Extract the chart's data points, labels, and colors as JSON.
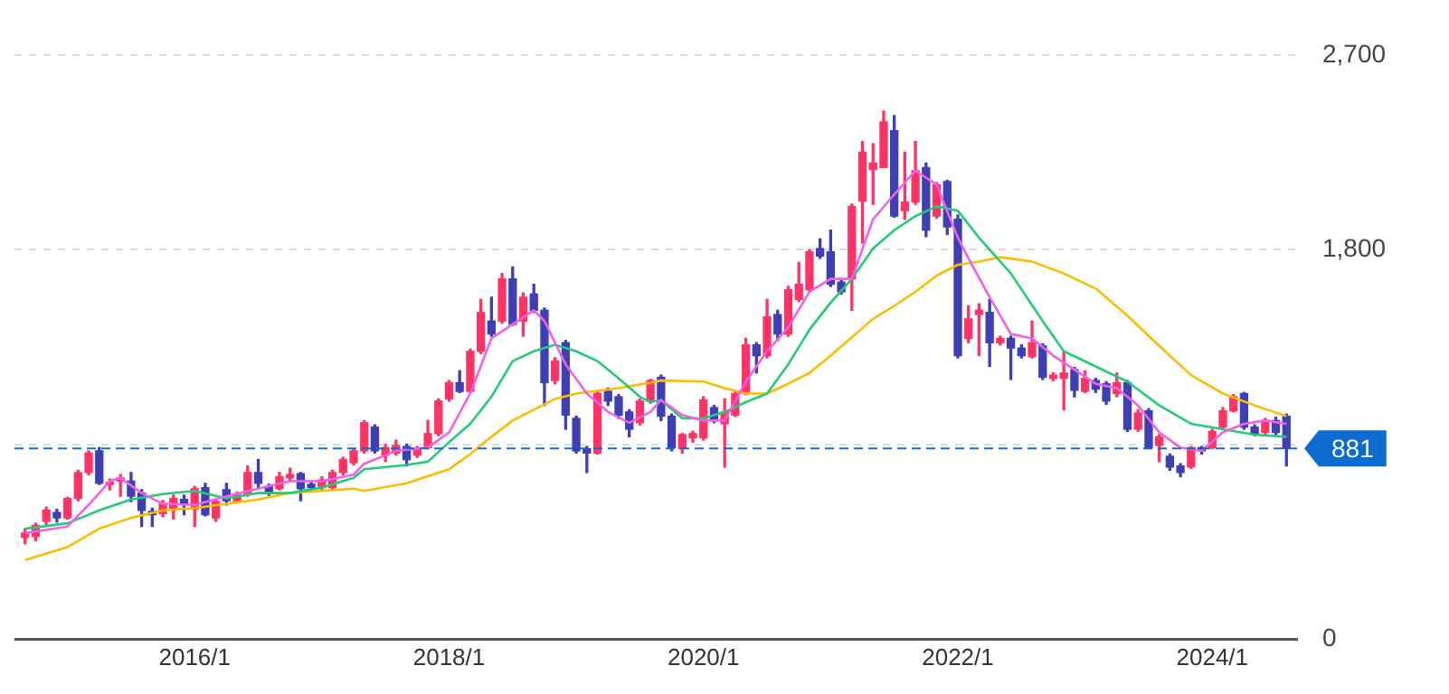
{
  "chart_data": {
    "type": "candlestick",
    "x": [
      "2014-09",
      "2014-10",
      "2014-11",
      "2014-12",
      "2015-01",
      "2015-02",
      "2015-03",
      "2015-04",
      "2015-05",
      "2015-06",
      "2015-07",
      "2015-08",
      "2015-09",
      "2015-10",
      "2015-11",
      "2015-12",
      "2016-01",
      "2016-02",
      "2016-03",
      "2016-04",
      "2016-05",
      "2016-06",
      "2016-07",
      "2016-08",
      "2016-09",
      "2016-10",
      "2016-11",
      "2016-12",
      "2017-01",
      "2017-02",
      "2017-03",
      "2017-04",
      "2017-05",
      "2017-06",
      "2017-07",
      "2017-08",
      "2017-09",
      "2017-10",
      "2017-11",
      "2017-12",
      "2018-01",
      "2018-02",
      "2018-03",
      "2018-04",
      "2018-05",
      "2018-06",
      "2018-07",
      "2018-08",
      "2018-09",
      "2018-10",
      "2018-11",
      "2018-12",
      "2019-01",
      "2019-02",
      "2019-03",
      "2019-04",
      "2019-05",
      "2019-06",
      "2019-07",
      "2019-08",
      "2019-09",
      "2019-10",
      "2019-11",
      "2019-12",
      "2020-01",
      "2020-02",
      "2020-03",
      "2020-04",
      "2020-05",
      "2020-06",
      "2020-07",
      "2020-08",
      "2020-09",
      "2020-10",
      "2020-11",
      "2020-12",
      "2021-01",
      "2021-02",
      "2021-03",
      "2021-04",
      "2021-05",
      "2021-06",
      "2021-07",
      "2021-08",
      "2021-09",
      "2021-10",
      "2021-11",
      "2021-12",
      "2022-01",
      "2022-02",
      "2022-03",
      "2022-04",
      "2022-05",
      "2022-06",
      "2022-07",
      "2022-08",
      "2022-09",
      "2022-10",
      "2022-11",
      "2022-12",
      "2023-01",
      "2023-02",
      "2023-03",
      "2023-04",
      "2023-05",
      "2023-06",
      "2023-07",
      "2023-08",
      "2023-09",
      "2023-10",
      "2023-11",
      "2023-12",
      "2024-01",
      "2024-02",
      "2024-03",
      "2024-04",
      "2024-05",
      "2024-06",
      "2024-07",
      "2024-08"
    ],
    "ohlc": [
      [
        470,
        510,
        440,
        490
      ],
      [
        475,
        535,
        455,
        525
      ],
      [
        545,
        610,
        530,
        595
      ],
      [
        585,
        600,
        540,
        560
      ],
      [
        560,
        655,
        555,
        650
      ],
      [
        650,
        780,
        640,
        770
      ],
      [
        770,
        870,
        760,
        860
      ],
      [
        870,
        885,
        715,
        720
      ],
      [
        715,
        740,
        690,
        725
      ],
      [
        730,
        760,
        660,
        745
      ],
      [
        730,
        770,
        635,
        660
      ],
      [
        675,
        690,
        520,
        595
      ],
      [
        590,
        605,
        520,
        575
      ],
      [
        580,
        640,
        565,
        625
      ],
      [
        600,
        665,
        555,
        650
      ],
      [
        645,
        665,
        575,
        625
      ],
      [
        600,
        705,
        520,
        695
      ],
      [
        700,
        720,
        570,
        575
      ],
      [
        560,
        645,
        545,
        635
      ],
      [
        690,
        720,
        620,
        640
      ],
      [
        640,
        680,
        630,
        665
      ],
      [
        670,
        800,
        660,
        770
      ],
      [
        770,
        830,
        700,
        720
      ],
      [
        705,
        715,
        665,
        680
      ],
      [
        695,
        770,
        690,
        750
      ],
      [
        745,
        790,
        735,
        760
      ],
      [
        765,
        770,
        640,
        695
      ],
      [
        715,
        725,
        690,
        700
      ],
      [
        700,
        750,
        690,
        735
      ],
      [
        700,
        780,
        690,
        770
      ],
      [
        770,
        840,
        760,
        830
      ],
      [
        815,
        880,
        805,
        870
      ],
      [
        870,
        1010,
        860,
        1000
      ],
      [
        980,
        990,
        860,
        870
      ],
      [
        850,
        900,
        820,
        885
      ],
      [
        860,
        920,
        850,
        895
      ],
      [
        890,
        900,
        800,
        830
      ],
      [
        850,
        890,
        840,
        880
      ],
      [
        885,
        1010,
        880,
        950
      ],
      [
        950,
        1110,
        940,
        1100
      ],
      [
        1110,
        1195,
        1100,
        1185
      ],
      [
        1185,
        1240,
        1140,
        1145
      ],
      [
        1145,
        1340,
        1140,
        1330
      ],
      [
        1330,
        1570,
        1320,
        1510
      ],
      [
        1470,
        1580,
        1400,
        1410
      ],
      [
        1470,
        1690,
        1460,
        1665
      ],
      [
        1665,
        1720,
        1450,
        1455
      ],
      [
        1470,
        1600,
        1400,
        1580
      ],
      [
        1595,
        1640,
        1510,
        1520
      ],
      [
        1520,
        1530,
        1080,
        1185
      ],
      [
        1195,
        1300,
        1180,
        1285
      ],
      [
        1370,
        1380,
        970,
        1035
      ],
      [
        1020,
        1030,
        860,
        870
      ],
      [
        880,
        890,
        770,
        860
      ],
      [
        860,
        1145,
        855,
        1135
      ],
      [
        1145,
        1160,
        1080,
        1100
      ],
      [
        1120,
        1130,
        1020,
        1035
      ],
      [
        1050,
        1060,
        935,
        970
      ],
      [
        1000,
        1110,
        990,
        1100
      ],
      [
        1100,
        1200,
        1090,
        1195
      ],
      [
        1210,
        1220,
        1010,
        1030
      ],
      [
        1030,
        1040,
        870,
        885
      ],
      [
        880,
        950,
        860,
        945
      ],
      [
        930,
        960,
        910,
        950
      ],
      [
        930,
        1120,
        920,
        1105
      ],
      [
        1070,
        1080,
        1000,
        1010
      ],
      [
        995,
        1110,
        795,
        1050
      ],
      [
        1035,
        1145,
        1030,
        1135
      ],
      [
        1135,
        1390,
        1130,
        1360
      ],
      [
        1360,
        1370,
        1230,
        1310
      ],
      [
        1310,
        1570,
        1300,
        1490
      ],
      [
        1500,
        1520,
        1380,
        1410
      ],
      [
        1410,
        1630,
        1400,
        1615
      ],
      [
        1570,
        1740,
        1560,
        1640
      ],
      [
        1615,
        1800,
        1610,
        1790
      ],
      [
        1805,
        1850,
        1760,
        1770
      ],
      [
        1790,
        1890,
        1630,
        1640
      ],
      [
        1650,
        1660,
        1595,
        1605
      ],
      [
        1665,
        2010,
        1520,
        2000
      ],
      [
        2025,
        2300,
        1830,
        2250
      ],
      [
        2170,
        2290,
        2010,
        2200
      ],
      [
        2180,
        2440,
        2180,
        2390
      ],
      [
        2350,
        2420,
        1950,
        1955
      ],
      [
        1980,
        2250,
        1940,
        2020
      ],
      [
        2020,
        2300,
        2010,
        2165
      ],
      [
        2180,
        2200,
        1860,
        1890
      ],
      [
        1955,
        2110,
        1945,
        2100
      ],
      [
        2115,
        2120,
        1870,
        1905
      ],
      [
        1940,
        1960,
        1300,
        1310
      ],
      [
        1390,
        1540,
        1370,
        1480
      ],
      [
        1500,
        1550,
        1310,
        1520
      ],
      [
        1510,
        1570,
        1260,
        1370
      ],
      [
        1370,
        1400,
        1360,
        1390
      ],
      [
        1390,
        1400,
        1200,
        1345
      ],
      [
        1345,
        1360,
        1300,
        1310
      ],
      [
        1305,
        1470,
        1300,
        1370
      ],
      [
        1355,
        1365,
        1200,
        1210
      ],
      [
        1205,
        1230,
        1195,
        1220
      ],
      [
        1205,
        1330,
        1060,
        1230
      ],
      [
        1245,
        1255,
        1120,
        1150
      ],
      [
        1145,
        1240,
        1140,
        1205
      ],
      [
        1195,
        1205,
        1140,
        1155
      ],
      [
        1180,
        1190,
        1085,
        1100
      ],
      [
        1135,
        1230,
        1120,
        1185
      ],
      [
        1185,
        1195,
        960,
        970
      ],
      [
        970,
        1060,
        960,
        1045
      ],
      [
        1055,
        1065,
        880,
        885
      ],
      [
        895,
        945,
        820,
        935
      ],
      [
        845,
        855,
        780,
        795
      ],
      [
        800,
        810,
        750,
        770
      ],
      [
        795,
        890,
        790,
        885
      ],
      [
        885,
        890,
        855,
        870
      ],
      [
        885,
        970,
        880,
        960
      ],
      [
        980,
        1070,
        975,
        1055
      ],
      [
        1055,
        1130,
        1050,
        1120
      ],
      [
        1135,
        1140,
        970,
        980
      ],
      [
        980,
        990,
        940,
        945
      ],
      [
        955,
        1020,
        945,
        1010
      ],
      [
        1010,
        1025,
        945,
        955
      ],
      [
        1030,
        1040,
        800,
        881
      ]
    ],
    "colors": [
      "#ff3366",
      "#ff3366",
      "#ff3366",
      "#3f3fb5",
      "#ff3366",
      "#ff3366",
      "#ff3366",
      "#3f3fb5",
      "#ff3366",
      "#ff3366",
      "#3f3fb5",
      "#3f3fb5",
      "#3f3fb5",
      "#ff3366",
      "#ff3366",
      "#3f3fb5",
      "#ff3366",
      "#3f3fb5",
      "#ff3366",
      "#3f3fb5",
      "#ff3366",
      "#ff3366",
      "#3f3fb5",
      "#3f3fb5",
      "#ff3366",
      "#ff3366",
      "#3f3fb5",
      "#3f3fb5",
      "#ff3366",
      "#ff3366",
      "#ff3366",
      "#ff3366",
      "#ff3366",
      "#3f3fb5",
      "#ff3366",
      "#ff3366",
      "#3f3fb5",
      "#ff3366",
      "#ff3366",
      "#ff3366",
      "#ff3366",
      "#3f3fb5",
      "#ff3366",
      "#ff3366",
      "#3f3fb5",
      "#ff3366",
      "#3f3fb5",
      "#ff3366",
      "#3f3fb5",
      "#3f3fb5",
      "#ff3366",
      "#3f3fb5",
      "#3f3fb5",
      "#3f3fb5",
      "#ff3366",
      "#3f3fb5",
      "#3f3fb5",
      "#3f3fb5",
      "#ff3366",
      "#ff3366",
      "#3f3fb5",
      "#3f3fb5",
      "#ff3366",
      "#ff3366",
      "#ff3366",
      "#3f3fb5",
      "#ff3366",
      "#ff3366",
      "#ff3366",
      "#3f3fb5",
      "#ff3366",
      "#3f3fb5",
      "#ff3366",
      "#ff3366",
      "#ff3366",
      "#3f3fb5",
      "#3f3fb5",
      "#3f3fb5",
      "#ff3366",
      "#ff3366",
      "#ff3366",
      "#ff3366",
      "#3f3fb5",
      "#ff3366",
      "#ff3366",
      "#3f3fb5",
      "#ff3366",
      "#3f3fb5",
      "#3f3fb5",
      "#ff3366",
      "#ff3366",
      "#3f3fb5",
      "#ff3366",
      "#3f3fb5",
      "#3f3fb5",
      "#ff3366",
      "#3f3fb5",
      "#ff3366",
      "#ff3366",
      "#3f3fb5",
      "#ff3366",
      "#3f3fb5",
      "#3f3fb5",
      "#ff3366",
      "#3f3fb5",
      "#ff3366",
      "#3f3fb5",
      "#ff3366",
      "#3f3fb5",
      "#3f3fb5",
      "#ff3366",
      "#3f3fb5",
      "#ff3366",
      "#ff3366",
      "#ff3366",
      "#3f3fb5",
      "#3f3fb5",
      "#ff3366",
      "#3f3fb5",
      "#3f3fb5"
    ],
    "series": [
      {
        "type": "line",
        "color": "#f060e8",
        "x": [
          "2014-09",
          "2015-01",
          "2015-03",
          "2015-05",
          "2015-06",
          "2015-08",
          "2015-10",
          "2016-01",
          "2016-04",
          "2016-07",
          "2016-10",
          "2017-01",
          "2017-04",
          "2017-05",
          "2017-08",
          "2017-11",
          "2018-01",
          "2018-03",
          "2018-05",
          "2018-07",
          "2018-09",
          "2018-10",
          "2018-12",
          "2019-02",
          "2019-04",
          "2019-06",
          "2019-08",
          "2019-09",
          "2019-11",
          "2020-01",
          "2020-03",
          "2020-05",
          "2020-07",
          "2020-09",
          "2020-11",
          "2021-01",
          "2021-03",
          "2021-05",
          "2021-07",
          "2021-09",
          "2021-11",
          "2022-01",
          "2022-02",
          "2022-04",
          "2022-06",
          "2022-08",
          "2022-10",
          "2022-12",
          "2023-02",
          "2023-04",
          "2023-06",
          "2023-08",
          "2023-10",
          "2023-12",
          "2024-02",
          "2024-04",
          "2024-06",
          "2024-08"
        ],
        "values": [
          490,
          520,
          620,
          730,
          745,
          675,
          625,
          620,
          660,
          695,
          730,
          730,
          760,
          810,
          870,
          885,
          955,
          1135,
          1390,
          1455,
          1520,
          1470,
          1270,
          1135,
          1050,
          1000,
          1050,
          1105,
          1035,
          1010,
          1010,
          1190,
          1330,
          1440,
          1605,
          1665,
          1665,
          1940,
          2055,
          2165,
          2100,
          1855,
          1760,
          1580,
          1410,
          1390,
          1310,
          1245,
          1180,
          1160,
          1080,
          955,
          885,
          870,
          955,
          995,
          1010,
          995
        ]
      },
      {
        "type": "line",
        "color": "#22cc77",
        "x": [
          "2014-09",
          "2015-01",
          "2015-04",
          "2015-07",
          "2015-10",
          "2016-01",
          "2016-04",
          "2016-07",
          "2016-10",
          "2017-01",
          "2017-04",
          "2017-05",
          "2017-09",
          "2017-11",
          "2018-01",
          "2018-03",
          "2018-05",
          "2018-07",
          "2018-09",
          "2018-11",
          "2019-01",
          "2019-03",
          "2019-05",
          "2019-07",
          "2019-08",
          "2019-09",
          "2019-11",
          "2020-01",
          "2020-03",
          "2020-05",
          "2020-07",
          "2020-09",
          "2020-11",
          "2021-01",
          "2021-03",
          "2021-05",
          "2021-07",
          "2021-09",
          "2021-11",
          "2022-01",
          "2022-03",
          "2022-06",
          "2022-09",
          "2022-11",
          "2023-02",
          "2023-05",
          "2023-08",
          "2023-11",
          "2024-02",
          "2024-05",
          "2024-08"
        ],
        "values": [
          510,
          535,
          595,
          645,
          670,
          685,
          650,
          675,
          675,
          700,
          745,
          785,
          805,
          820,
          910,
          995,
          1120,
          1285,
          1330,
          1360,
          1330,
          1285,
          1205,
          1120,
          1095,
          1105,
          1020,
          1020,
          1050,
          1095,
          1135,
          1270,
          1430,
          1555,
          1665,
          1805,
          1890,
          1955,
          2000,
          1980,
          1855,
          1690,
          1470,
          1330,
          1260,
          1190,
          1080,
          995,
          970,
          945,
          935
        ]
      },
      {
        "type": "line",
        "color": "#ffbb00",
        "x": [
          "2014-09",
          "2015-01",
          "2015-04",
          "2015-07",
          "2015-10",
          "2016-01",
          "2016-04",
          "2016-07",
          "2016-10",
          "2017-01",
          "2017-04",
          "2017-05",
          "2017-09",
          "2018-01",
          "2018-03",
          "2018-05",
          "2018-07",
          "2018-09",
          "2018-11",
          "2019-01",
          "2019-05",
          "2019-08",
          "2019-09",
          "2020-01",
          "2020-03",
          "2020-05",
          "2020-07",
          "2020-09",
          "2020-11",
          "2021-01",
          "2021-03",
          "2021-05",
          "2021-07",
          "2021-09",
          "2021-11",
          "2022-01",
          "2022-03",
          "2022-05",
          "2022-08",
          "2022-11",
          "2023-02",
          "2023-05",
          "2023-08",
          "2023-11",
          "2024-02",
          "2024-05",
          "2024-08"
        ],
        "values": [
          365,
          425,
          510,
          560,
          595,
          605,
          625,
          645,
          675,
          685,
          695,
          685,
          720,
          785,
          855,
          935,
          1010,
          1060,
          1110,
          1135,
          1160,
          1185,
          1195,
          1190,
          1160,
          1135,
          1135,
          1180,
          1230,
          1310,
          1395,
          1480,
          1540,
          1605,
          1680,
          1730,
          1745,
          1765,
          1745,
          1690,
          1620,
          1495,
          1355,
          1220,
          1135,
          1080,
          1030
        ]
      }
    ],
    "xlim": [
      "2014-08",
      "2024-09"
    ],
    "xticks": [
      {
        "value": "2016-01",
        "label": "2016/1"
      },
      {
        "value": "2018-01",
        "label": "2018/1"
      },
      {
        "value": "2020-01",
        "label": "2020/1"
      },
      {
        "value": "2022-01",
        "label": "2022/1"
      },
      {
        "value": "2024-01",
        "label": "2024/1"
      }
    ],
    "ylim": [
      0,
      2700
    ],
    "yticks": [
      0,
      {
        "value": 900,
        "label": null
      },
      {
        "value": 1800,
        "label": "1,800"
      },
      {
        "value": 2700,
        "label": "2,700"
      }
    ],
    "grid": "y",
    "ref_lines": [
      {
        "axis": "y",
        "value": 881,
        "label": "881",
        "color": "#0d6cd0",
        "line_style": "dashed"
      }
    ]
  }
}
